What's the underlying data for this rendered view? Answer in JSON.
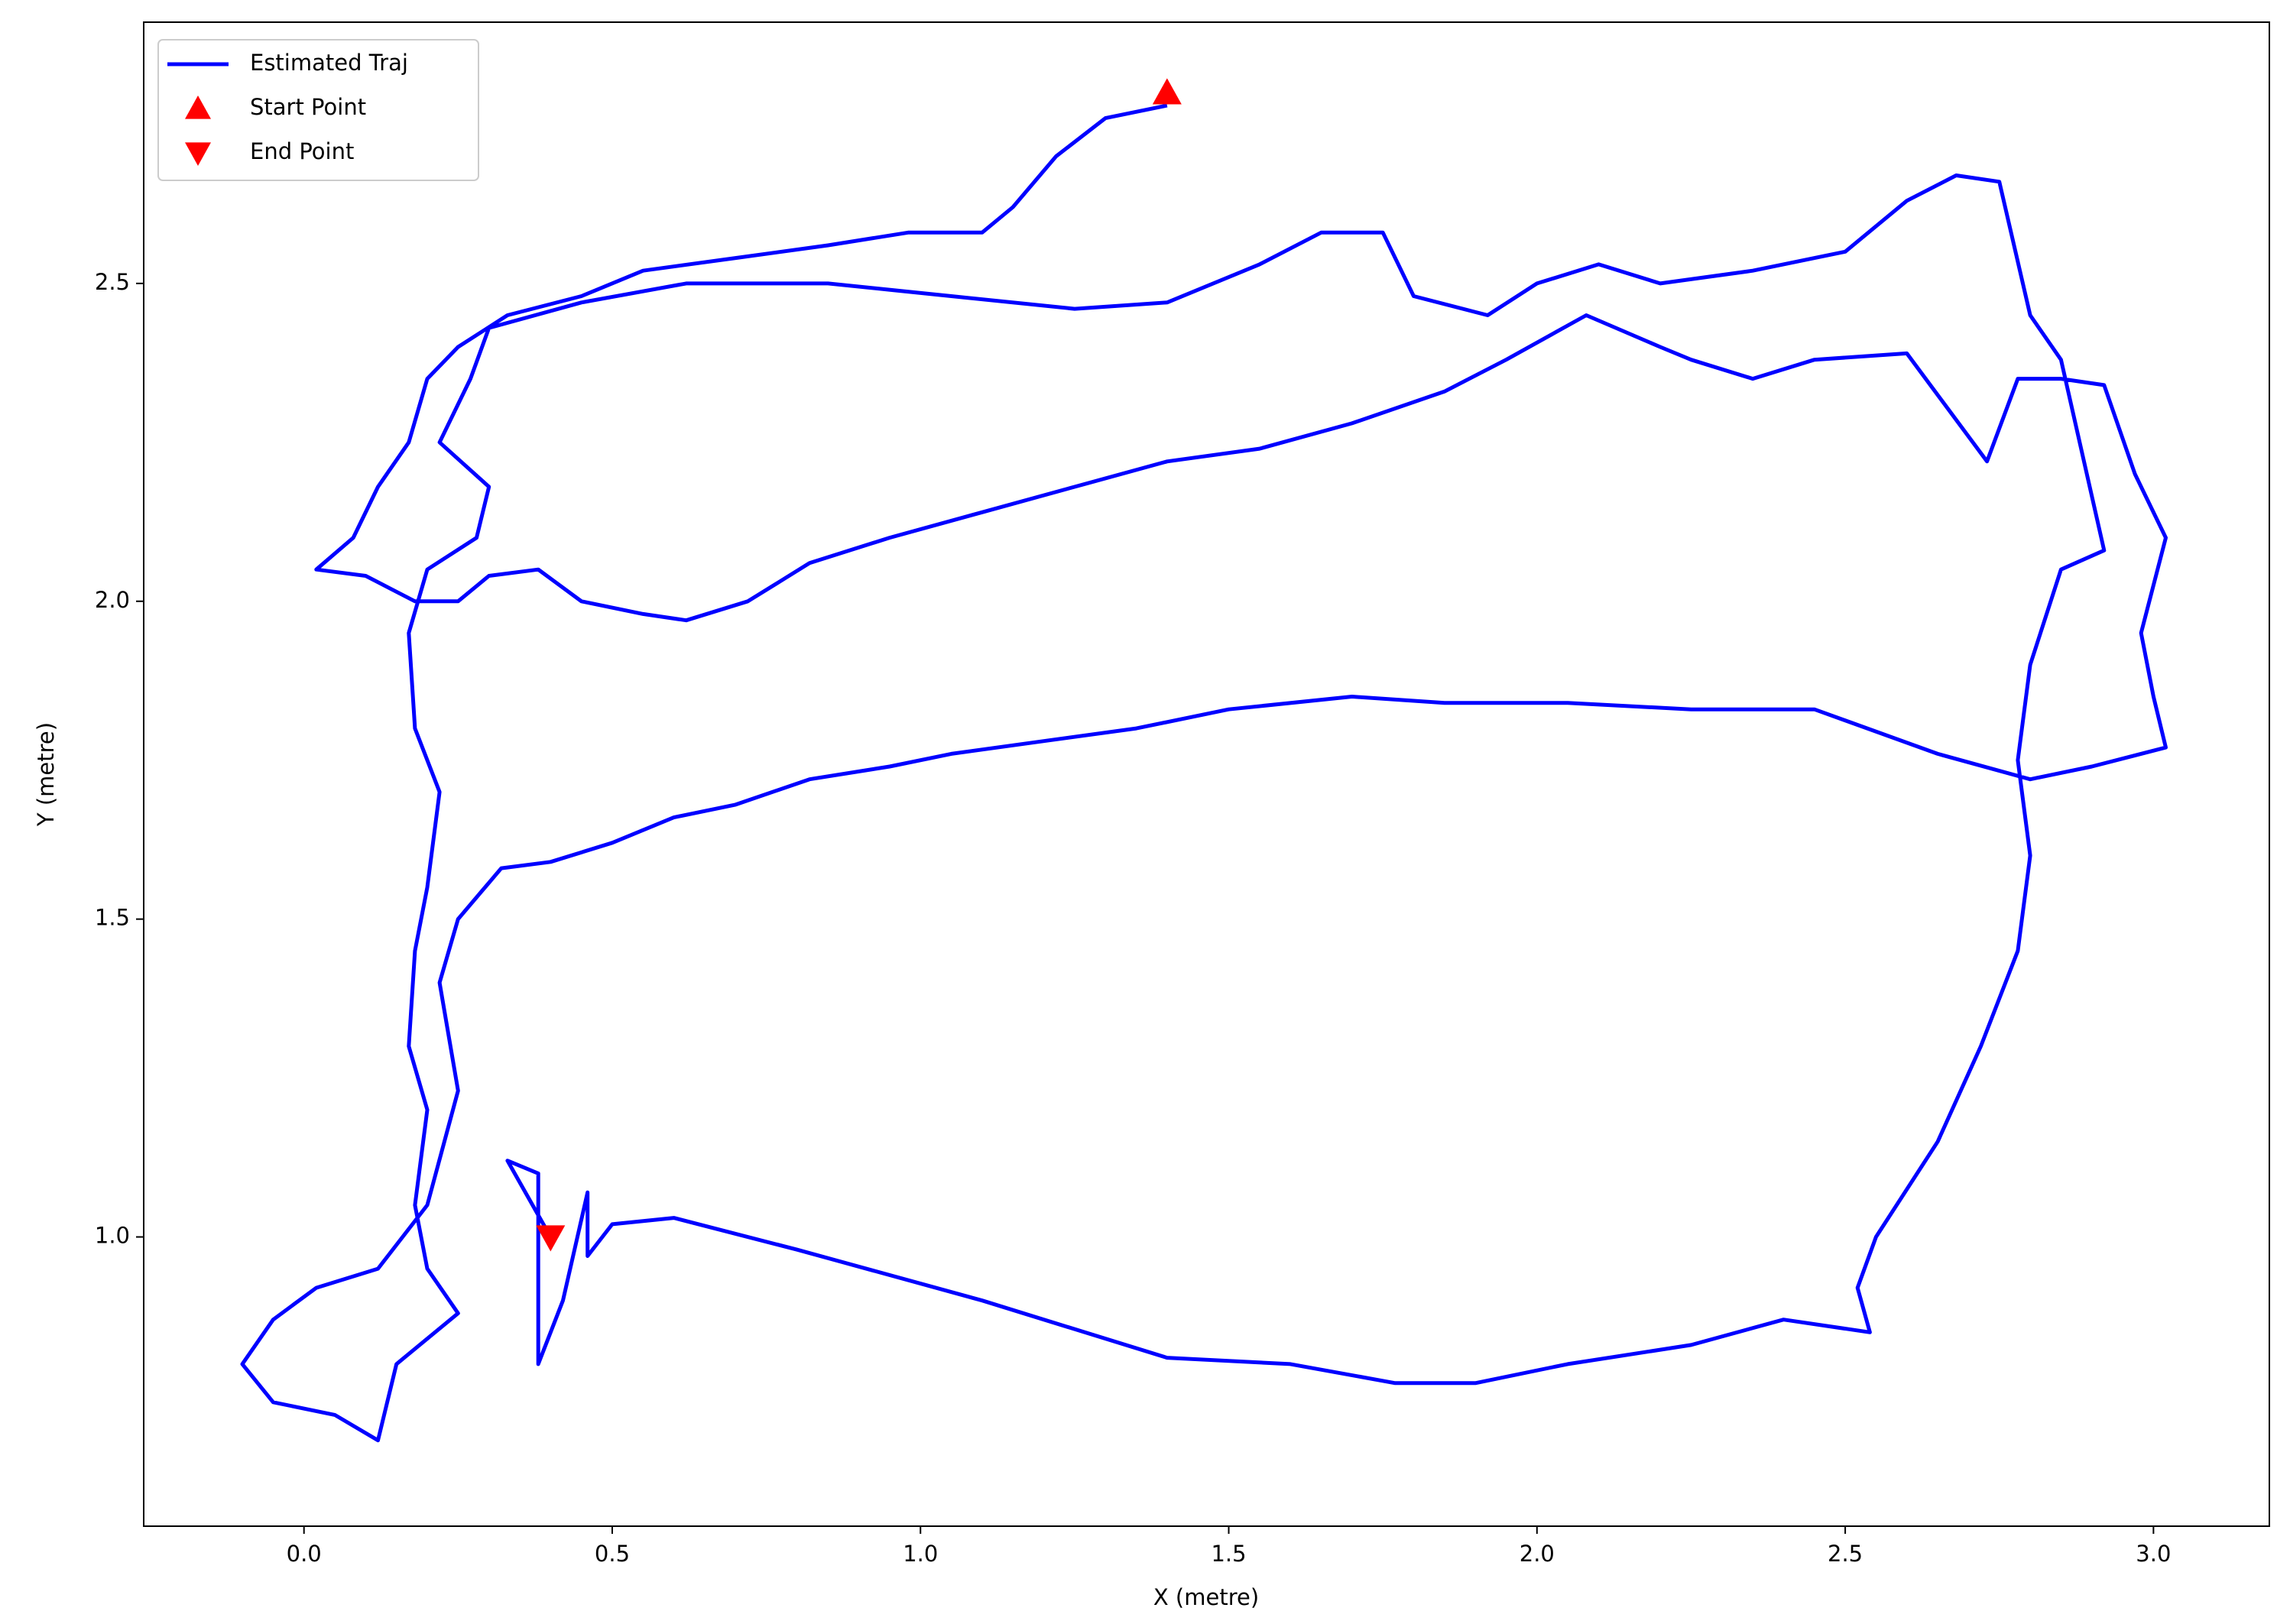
{
  "chart_data": {
    "type": "line",
    "xlabel": "X  (metre)",
    "ylabel": "Y  (metre)",
    "xlim": [
      -0.26,
      3.188
    ],
    "ylim": [
      0.545,
      2.911
    ],
    "xticks": [
      {
        "value": 0,
        "label": "0.0"
      },
      0.5,
      {
        "value": 1,
        "label": "1.0"
      },
      1.5,
      {
        "value": 2,
        "label": "2.0"
      },
      2.5,
      {
        "value": 3,
        "label": "3.0"
      }
    ],
    "yticks": [
      {
        "value": 1,
        "label": "1.0"
      },
      1.5,
      {
        "value": 2,
        "label": "2.0"
      },
      2.5
    ],
    "legend": "upper left",
    "series": [
      {
        "name": "Estimated Traj",
        "color": "#0000ff",
        "marker": "line",
        "x": [
          1.4,
          1.3,
          1.22,
          1.15,
          1.1,
          0.98,
          0.85,
          0.7,
          0.55,
          0.45,
          0.33,
          0.25,
          0.2,
          0.17,
          0.12,
          0.08,
          0.02,
          0.1,
          0.18,
          0.25,
          0.3,
          0.38,
          0.45,
          0.55,
          0.62,
          0.72,
          0.82,
          0.95,
          1.1,
          1.25,
          1.4,
          1.55,
          1.7,
          1.85,
          1.95,
          2.08,
          2.2,
          2.25,
          2.35,
          2.45,
          2.6,
          2.73,
          2.78,
          2.85,
          2.92,
          2.97,
          3.02,
          2.98,
          3.0,
          3.02,
          2.9,
          2.8,
          2.65,
          2.45,
          2.25,
          2.05,
          1.85,
          1.7,
          1.5,
          1.35,
          1.2,
          1.05,
          0.95,
          0.82,
          0.7,
          0.6,
          0.5,
          0.4,
          0.32,
          0.25,
          0.22,
          0.25,
          0.2,
          0.12,
          0.02,
          -0.05,
          -0.1,
          -0.05,
          0.05,
          0.12,
          0.15,
          0.25,
          0.2,
          0.18,
          0.2,
          0.17,
          0.18,
          0.2,
          0.22,
          0.18,
          0.17,
          0.2,
          0.28,
          0.3,
          0.22,
          0.27,
          0.3,
          0.45,
          0.62,
          0.85,
          1.05,
          1.25,
          1.4,
          1.55,
          1.65,
          1.75,
          1.8,
          1.92,
          2.0,
          2.1,
          2.2,
          2.35,
          2.5,
          2.6,
          2.68,
          2.75,
          2.8,
          2.85,
          2.92,
          2.85,
          2.8,
          2.78,
          2.8,
          2.78,
          2.72,
          2.65,
          2.55,
          2.52,
          2.54,
          2.4,
          2.25,
          2.05,
          1.9,
          1.77,
          1.6,
          1.4,
          1.1,
          0.8,
          0.6,
          0.5,
          0.46,
          0.46,
          0.42,
          0.38,
          0.38,
          0.33,
          0.4
        ],
        "values": [
          2.78,
          2.76,
          2.7,
          2.62,
          2.58,
          2.58,
          2.56,
          2.54,
          2.52,
          2.48,
          2.45,
          2.4,
          2.35,
          2.25,
          2.18,
          2.1,
          2.05,
          2.04,
          2.0,
          2.0,
          2.04,
          2.05,
          2.0,
          1.98,
          1.97,
          2.0,
          2.06,
          2.1,
          2.14,
          2.18,
          2.22,
          2.24,
          2.28,
          2.33,
          2.38,
          2.45,
          2.4,
          2.38,
          2.35,
          2.38,
          2.39,
          2.22,
          2.35,
          2.35,
          2.34,
          2.2,
          2.1,
          1.95,
          1.85,
          1.77,
          1.74,
          1.72,
          1.76,
          1.83,
          1.83,
          1.84,
          1.84,
          1.85,
          1.83,
          1.8,
          1.78,
          1.76,
          1.74,
          1.72,
          1.68,
          1.66,
          1.62,
          1.59,
          1.58,
          1.5,
          1.4,
          1.23,
          1.05,
          0.95,
          0.92,
          0.87,
          0.8,
          0.74,
          0.72,
          0.68,
          0.8,
          0.88,
          0.95,
          1.05,
          1.2,
          1.3,
          1.45,
          1.55,
          1.7,
          1.8,
          1.95,
          2.05,
          2.1,
          2.18,
          2.25,
          2.35,
          2.43,
          2.47,
          2.5,
          2.5,
          2.48,
          2.46,
          2.47,
          2.53,
          2.58,
          2.58,
          2.48,
          2.45,
          2.5,
          2.53,
          2.5,
          2.52,
          2.55,
          2.63,
          2.67,
          2.66,
          2.45,
          2.38,
          2.08,
          2.05,
          1.9,
          1.75,
          1.6,
          1.45,
          1.3,
          1.15,
          1.0,
          0.92,
          0.85,
          0.87,
          0.83,
          0.8,
          0.77,
          0.77,
          0.8,
          0.81,
          0.9,
          0.98,
          1.03,
          1.02,
          0.97,
          1.07,
          0.9,
          0.8,
          1.1,
          1.12,
          1.0
        ]
      },
      {
        "name": "Start Point",
        "color": "#ff0000",
        "marker": "^",
        "x": [
          1.4
        ],
        "values": [
          2.8
        ]
      },
      {
        "name": "End Point",
        "color": "#ff0000",
        "marker": "v",
        "x": [
          0.4
        ],
        "values": [
          1.0
        ]
      }
    ]
  }
}
